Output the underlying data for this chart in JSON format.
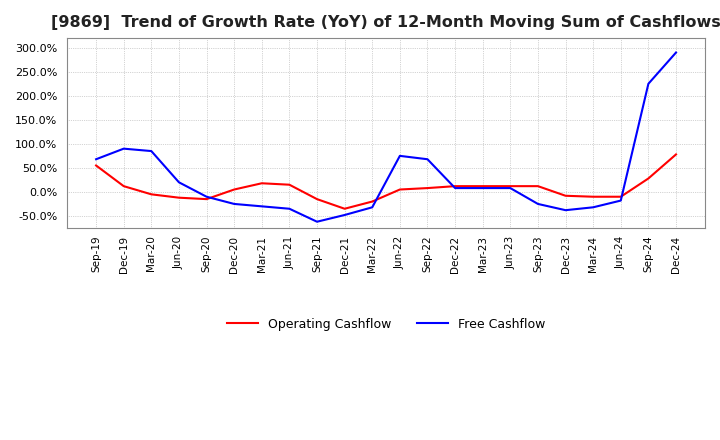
{
  "title": "[9869]  Trend of Growth Rate (YoY) of 12-Month Moving Sum of Cashflows",
  "title_fontsize": 11.5,
  "ylim": [
    -75,
    320
  ],
  "yticks": [
    -50,
    0,
    50,
    100,
    150,
    200,
    250,
    300
  ],
  "background_color": "#ffffff",
  "grid_color": "#aaaaaa",
  "x_labels": [
    "Sep-19",
    "Dec-19",
    "Mar-20",
    "Jun-20",
    "Sep-20",
    "Dec-20",
    "Mar-21",
    "Jun-21",
    "Sep-21",
    "Dec-21",
    "Mar-22",
    "Jun-22",
    "Sep-22",
    "Dec-22",
    "Mar-23",
    "Jun-23",
    "Sep-23",
    "Dec-23",
    "Mar-24",
    "Jun-24",
    "Sep-24",
    "Dec-24"
  ],
  "operating_cashflow": [
    55,
    12,
    -5,
    -12,
    -15,
    5,
    18,
    15,
    -15,
    -35,
    -20,
    5,
    8,
    12,
    12,
    12,
    12,
    -8,
    -10,
    -10,
    28,
    78
  ],
  "free_cashflow": [
    68,
    90,
    85,
    20,
    -10,
    -25,
    -30,
    -35,
    -62,
    -48,
    -32,
    75,
    68,
    8,
    8,
    8,
    -25,
    -38,
    -32,
    -18,
    225,
    290
  ],
  "op_color": "#ff0000",
  "free_color": "#0000ff",
  "line_width": 1.5
}
